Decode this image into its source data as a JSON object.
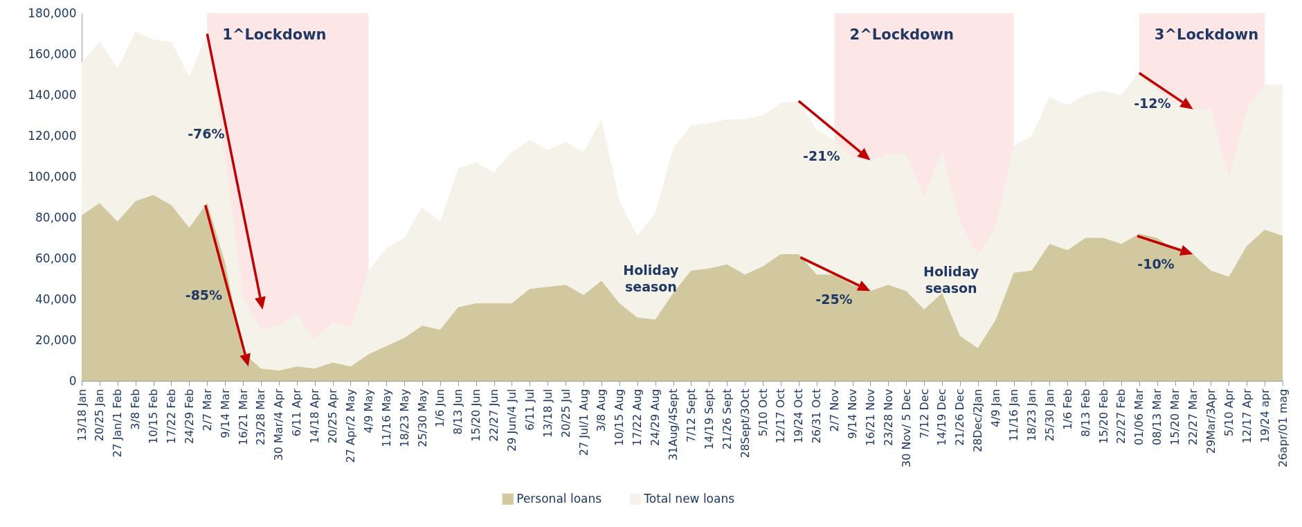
{
  "chart_data": {
    "type": "area",
    "legend": "bottom",
    "categories": [
      "13/18 Jan",
      "20/25 Jan",
      "27 Jan/1 Feb",
      "3/8 Feb",
      "10/15 Feb",
      "17/22 Feb",
      "24/29 Feb",
      "2/7 Mar",
      "9/14 Mar",
      "16/21 Mar",
      "23/28 Mar",
      "30 Mar/4 Apr",
      "6/11 Apr",
      "14/18 Apr",
      "20/25 Apr",
      "27 Apr/2 May",
      "4/9 May",
      "11/16 May",
      "18/23 May",
      "25/30 May",
      "1/6 Jun",
      "8/13 Jun",
      "15/20 Jun",
      "22/27 Jun",
      "29 Jun/4 Jul",
      "6/11 Jul",
      "13/18 Jul",
      "20/25 Jul",
      "27 Jul/1 Aug",
      "3/8 Aug",
      "10/15 Aug",
      "17/22 Aug",
      "24/29 Aug",
      "31Aug/4Sept",
      "7/12 Sept",
      "14/19 Sept",
      "21/26 Sept",
      "28Sept/3Oct",
      "5/10 Oct",
      "12/17 Oct",
      "19/24 Oct",
      "26/31 Oct",
      "2/7 Nov",
      "9/14 Nov",
      "16/21 Nov",
      "23/28 Nov",
      "30 Nov/ 5 Dec",
      "7/12 Dec",
      "14/19 Dec",
      "21/26 Dec",
      "28Dec/2Jan",
      "4/9 Jan",
      "11/16 Jan",
      "18/23 Jan",
      "25/30 Jan",
      "1/6 Feb",
      "8/13 Feb",
      "15/20 Feb",
      "22/27 Feb",
      "01/06 Mar",
      "08/13 Mar",
      "15/20 Mar",
      "22/27 Mar",
      "29Mar/3Apr",
      "5/10 Apr",
      "12/17 Apr",
      "19/24 apr",
      "26apr/01 mag"
    ],
    "series": [
      {
        "name": "Personal loans",
        "color": "#d1c8a0",
        "values": [
          81000,
          87000,
          78000,
          88000,
          91000,
          86000,
          75000,
          87000,
          58000,
          14000,
          6000,
          5000,
          7000,
          6000,
          9000,
          7000,
          13000,
          17000,
          21000,
          27000,
          25000,
          36000,
          38000,
          38000,
          38000,
          45000,
          46000,
          47000,
          42000,
          49000,
          38000,
          31000,
          30000,
          43000,
          54000,
          55000,
          57000,
          52000,
          56000,
          62000,
          62000,
          52000,
          52000,
          47000,
          44000,
          47000,
          44000,
          35000,
          43000,
          22000,
          16000,
          30000,
          53000,
          54000,
          67000,
          64000,
          70000,
          70000,
          67000,
          72000,
          70000,
          64000,
          62000,
          54000,
          51000,
          66000,
          74000,
          71000
        ]
      },
      {
        "name": "Total new loans",
        "color": "#f5f2ea",
        "values": [
          156000,
          166000,
          153000,
          171000,
          167000,
          166000,
          149000,
          170000,
          110000,
          41000,
          25000,
          27000,
          33000,
          20000,
          29000,
          26000,
          54000,
          65000,
          70000,
          85000,
          78000,
          104000,
          107000,
          102000,
          112000,
          118000,
          113000,
          117000,
          112000,
          128000,
          88000,
          71000,
          82000,
          114000,
          125000,
          126000,
          128000,
          128000,
          130000,
          136000,
          137000,
          123000,
          118000,
          109000,
          108000,
          111000,
          111000,
          90000,
          113000,
          78000,
          61000,
          76000,
          115000,
          120000,
          139000,
          135000,
          140000,
          142000,
          140000,
          151000,
          142000,
          136000,
          133000,
          133000,
          99000,
          133000,
          145000,
          145000
        ]
      }
    ],
    "ylim": [
      0,
      180000
    ],
    "yticks": [
      {
        "value": 0,
        "label": "0"
      },
      {
        "value": 20000,
        "label": "20,000"
      },
      {
        "value": 40000,
        "label": "40,000"
      },
      {
        "value": 60000,
        "label": "60,000"
      },
      {
        "value": 80000,
        "label": "80,000"
      },
      {
        "value": 100000,
        "label": "100,000"
      },
      {
        "value": 120000,
        "label": "120,000"
      },
      {
        "value": 140000,
        "label": "140,000"
      },
      {
        "value": 160000,
        "label": "160,000"
      },
      {
        "value": 180000,
        "label": "180,000"
      }
    ],
    "bands": [
      {
        "axis": "x",
        "from": "2/7 Mar",
        "to": "4/9 May",
        "label": "1^Lockdown",
        "color": "#fbe0e0"
      },
      {
        "axis": "x",
        "from": "2/7 Nov",
        "to": "11/16 Jan",
        "label": "2^Lockdown",
        "color": "#fbe0e0"
      },
      {
        "axis": "x",
        "from": "01/06 Mar",
        "to": "19/24 apr",
        "label": "3^Lockdown",
        "color": "#fbe0e0"
      }
    ],
    "annotations": [
      "-76%",
      "-85%",
      {
        "text": "-21%",
        "x": "16/21 Nov",
        "y": 108000
      },
      {
        "text": "-25%",
        "x": "16/21 Nov",
        "y": 44000
      },
      {
        "text": "-12%",
        "x": "22/27 Mar",
        "y": 133000
      },
      {
        "text": "-10%",
        "x": "22/27 Mar",
        "y": 62000
      },
      "Holiday season",
      "Holiday season"
    ]
  }
}
